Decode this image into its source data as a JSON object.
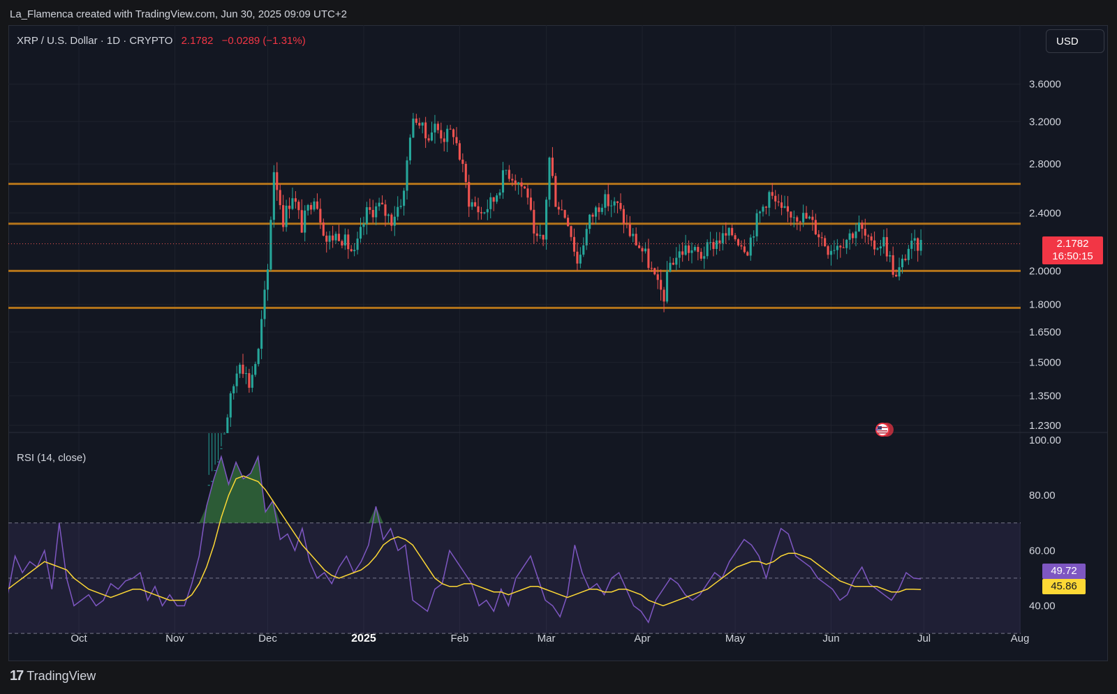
{
  "header": {
    "credit": "La_Flamenca created with TradingView.com, Jun 30, 2025 09:09 UTC+2"
  },
  "legend": {
    "symbol": "XRP / U.S. Dollar · 1D · CRYPTO",
    "last": "2.1782",
    "change": "−0.0289 (−1.31%)"
  },
  "currency": "USD",
  "price_badge": {
    "price": "2.1782",
    "countdown": "16:50:15"
  },
  "rsi": {
    "label": "RSI (14, close)",
    "value": "49.72",
    "ma_value": "45.86"
  },
  "footer": {
    "brand": "TradingView",
    "logo": "tradingview-logo"
  },
  "colors": {
    "up": "#26a69a",
    "down": "#ef5350",
    "level": "#b5751a",
    "rsi": "#7e57c2",
    "rsi_ma": "#fdd835",
    "background": "#131722"
  },
  "chart_data": [
    {
      "type": "candlestick",
      "title": "XRP / U.S. Dollar · 1D · CRYPTO",
      "x_ticks": [
        "Oct",
        "Nov",
        "Dec",
        "2025",
        "Feb",
        "Mar",
        "Apr",
        "May",
        "Jun",
        "Jul",
        "Aug"
      ],
      "y_ticks": [
        "1.2300",
        "1.3500",
        "1.5000",
        "1.6500",
        "1.8000",
        "2.0000",
        "2.4000",
        "2.8000",
        "3.2000",
        "3.6000"
      ],
      "y_scale": "log",
      "ylim": [
        1.2,
        3.8
      ],
      "horizontal_levels": [
        2.63,
        2.32,
        2.0,
        1.78
      ],
      "last_price": 2.1782,
      "anchors": [
        {
          "x": "Nov 12",
          "y": 1.0
        },
        {
          "x": "Nov 16",
          "y": 1.15
        },
        {
          "x": "Nov 22",
          "y": 1.52
        },
        {
          "x": "Nov 25",
          "y": 1.4
        },
        {
          "x": "Nov 28",
          "y": 1.55
        },
        {
          "x": "Dec 1",
          "y": 2.0
        },
        {
          "x": "Dec 3",
          "y": 2.75
        },
        {
          "x": "Dec 6",
          "y": 2.35
        },
        {
          "x": "Dec 9",
          "y": 2.55
        },
        {
          "x": "Dec 12",
          "y": 2.3
        },
        {
          "x": "Dec 16",
          "y": 2.55
        },
        {
          "x": "Dec 20",
          "y": 2.2
        },
        {
          "x": "Dec 24",
          "y": 2.25
        },
        {
          "x": "Dec 29",
          "y": 2.1
        },
        {
          "x": "Jan 2",
          "y": 2.4
        },
        {
          "x": "Jan 6",
          "y": 2.45
        },
        {
          "x": "Jan 10",
          "y": 2.35
        },
        {
          "x": "Jan 14",
          "y": 2.55
        },
        {
          "x": "Jan 16",
          "y": 3.1
        },
        {
          "x": "Jan 18",
          "y": 3.25
        },
        {
          "x": "Jan 21",
          "y": 3.05
        },
        {
          "x": "Jan 24",
          "y": 3.15
        },
        {
          "x": "Jan 27",
          "y": 3.05
        },
        {
          "x": "Jan 30",
          "y": 3.1
        },
        {
          "x": "Feb 2",
          "y": 2.75
        },
        {
          "x": "Feb 4",
          "y": 2.5
        },
        {
          "x": "Feb 8",
          "y": 2.4
        },
        {
          "x": "Feb 12",
          "y": 2.5
        },
        {
          "x": "Feb 16",
          "y": 2.75
        },
        {
          "x": "Feb 20",
          "y": 2.65
        },
        {
          "x": "Feb 23",
          "y": 2.55
        },
        {
          "x": "Feb 25",
          "y": 2.2
        },
        {
          "x": "Feb 28",
          "y": 2.2
        },
        {
          "x": "Mar 2",
          "y": 2.85
        },
        {
          "x": "Mar 4",
          "y": 2.5
        },
        {
          "x": "Mar 8",
          "y": 2.35
        },
        {
          "x": "Mar 11",
          "y": 2.05
        },
        {
          "x": "Mar 15",
          "y": 2.35
        },
        {
          "x": "Mar 19",
          "y": 2.5
        },
        {
          "x": "Mar 24",
          "y": 2.45
        },
        {
          "x": "Mar 28",
          "y": 2.25
        },
        {
          "x": "Apr 2",
          "y": 2.1
        },
        {
          "x": "Apr 6",
          "y": 1.9
        },
        {
          "x": "Apr 8",
          "y": 1.85
        },
        {
          "x": "Apr 10",
          "y": 2.05
        },
        {
          "x": "Apr 15",
          "y": 2.15
        },
        {
          "x": "Apr 20",
          "y": 2.1
        },
        {
          "x": "Apr 25",
          "y": 2.2
        },
        {
          "x": "Apr 30",
          "y": 2.25
        },
        {
          "x": "May 5",
          "y": 2.15
        },
        {
          "x": "May 8",
          "y": 2.35
        },
        {
          "x": "May 12",
          "y": 2.55
        },
        {
          "x": "May 16",
          "y": 2.4
        },
        {
          "x": "May 20",
          "y": 2.4
        },
        {
          "x": "May 25",
          "y": 2.35
        },
        {
          "x": "May 31",
          "y": 2.15
        },
        {
          "x": "Jun 5",
          "y": 2.2
        },
        {
          "x": "Jun 10",
          "y": 2.3
        },
        {
          "x": "Jun 14",
          "y": 2.15
        },
        {
          "x": "Jun 18",
          "y": 2.2
        },
        {
          "x": "Jun 22",
          "y": 1.95
        },
        {
          "x": "Jun 26",
          "y": 2.15
        },
        {
          "x": "Jun 30",
          "y": 2.1782
        }
      ]
    },
    {
      "type": "line",
      "title": "RSI (14, close)",
      "y_ticks": [
        "40.00",
        "60.00",
        "80.00",
        "100.00"
      ],
      "ylim": [
        28,
        100
      ],
      "bands": [
        30,
        50,
        70
      ],
      "series": [
        {
          "name": "RSI (14, close)",
          "values": [
            44,
            58,
            52,
            56,
            54,
            60,
            46,
            70,
            50,
            40,
            42,
            44,
            40,
            42,
            48,
            46,
            49,
            50,
            52,
            42,
            47,
            40,
            44,
            40,
            40,
            48,
            58,
            76,
            86,
            94,
            84,
            92,
            86,
            88,
            94,
            74,
            78,
            64,
            66,
            60,
            68,
            56,
            50,
            52,
            48,
            54,
            58,
            52,
            56,
            62,
            76,
            64,
            68,
            60,
            62,
            42,
            40,
            38,
            46,
            48,
            60,
            56,
            52,
            48,
            40,
            42,
            38,
            46,
            40,
            50,
            54,
            58,
            50,
            42,
            40,
            36,
            44,
            62,
            52,
            46,
            48,
            44,
            50,
            52,
            46,
            40,
            38,
            34,
            42,
            46,
            50,
            48,
            44,
            42,
            44,
            48,
            52,
            50,
            56,
            60,
            64,
            62,
            58,
            50,
            60,
            68,
            66,
            58,
            56,
            54,
            50,
            48,
            46,
            42,
            44,
            50,
            54,
            48,
            46,
            44,
            42,
            46,
            52,
            50,
            49.72
          ]
        },
        {
          "name": "RSI-based MA",
          "values": [
            46,
            48,
            50,
            52,
            54,
            56,
            55,
            54,
            53,
            50,
            48,
            46,
            45,
            44,
            43,
            44,
            45,
            46,
            46,
            45,
            44,
            43,
            42,
            42,
            42,
            44,
            48,
            54,
            62,
            72,
            80,
            86,
            87,
            86,
            85,
            82,
            78,
            74,
            70,
            66,
            62,
            59,
            56,
            53,
            51,
            50,
            51,
            52,
            53,
            55,
            58,
            62,
            64,
            65,
            64,
            62,
            58,
            54,
            50,
            48,
            47,
            47,
            48,
            48,
            47,
            46,
            45,
            45,
            44,
            45,
            46,
            47,
            47,
            46,
            45,
            44,
            43,
            44,
            45,
            46,
            46,
            45,
            45,
            46,
            46,
            45,
            44,
            42,
            41,
            40,
            41,
            42,
            43,
            44,
            45,
            46,
            48,
            50,
            52,
            54,
            55,
            56,
            56,
            55,
            56,
            58,
            59,
            59,
            58,
            57,
            55,
            53,
            51,
            49,
            48,
            47,
            47,
            47,
            47,
            46,
            45,
            45,
            46,
            46,
            45.86
          ]
        }
      ]
    }
  ]
}
